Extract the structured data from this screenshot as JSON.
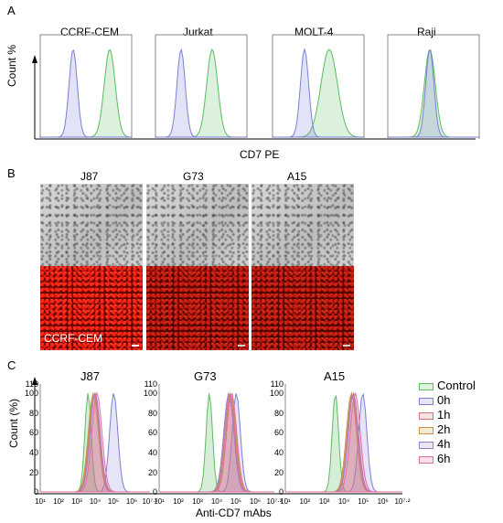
{
  "panels": {
    "a": "A",
    "b": "B",
    "c": "C"
  },
  "panel_a": {
    "y_label": "Count %",
    "x_label": "CD7 PE",
    "subplots": [
      {
        "title": "CCRF-CEM",
        "control_peak": 0.36,
        "stain_peak": 0.76
      },
      {
        "title": "Jurkat",
        "control_peak": 0.28,
        "stain_peak": 0.62
      },
      {
        "title": "MOLT-4",
        "control_peak": 0.35,
        "stain_peak": 0.62
      },
      {
        "title": "Raji",
        "control_peak": 0.46,
        "stain_peak": 0.46
      }
    ]
  },
  "panel_b": {
    "columns": [
      "J87",
      "G73",
      "A15"
    ],
    "overlay_label": "CCRF-CEM"
  },
  "panel_c": {
    "y_label": "Count (%)",
    "x_label": "Anti-CD7 mAbs",
    "y_ticks": [
      "110",
      "100",
      "80",
      "60",
      "40",
      "20",
      "0"
    ],
    "x_ticks": [
      "10¹",
      "10²",
      "10³",
      "10⁴",
      "10⁵",
      "10⁶",
      "10⁷·²"
    ],
    "legend": [
      {
        "label": "Control",
        "color": "#5dbb63"
      },
      {
        "label": "0h",
        "color": "#7b7fd6"
      },
      {
        "label": "1h",
        "color": "#d4747a"
      },
      {
        "label": "2h",
        "color": "#c9953c"
      },
      {
        "label": "4h",
        "color": "#9a7cc9"
      },
      {
        "label": "6h",
        "color": "#e76aa0"
      }
    ],
    "subplots": [
      {
        "title": "J87",
        "control": 3.7,
        "timepoints": [
          5.15,
          4.05,
          4.0,
          4.1,
          4.2
        ]
      },
      {
        "title": "G73",
        "control": 3.7,
        "timepoints": [
          5.15,
          4.8,
          4.85,
          4.75,
          4.9
        ]
      },
      {
        "title": "A15",
        "control": 3.65,
        "timepoints": [
          5.1,
          4.55,
          4.5,
          4.6,
          4.7
        ]
      }
    ]
  },
  "colors": {
    "control": "#5dbb63",
    "stain": "#7b7fd6"
  }
}
